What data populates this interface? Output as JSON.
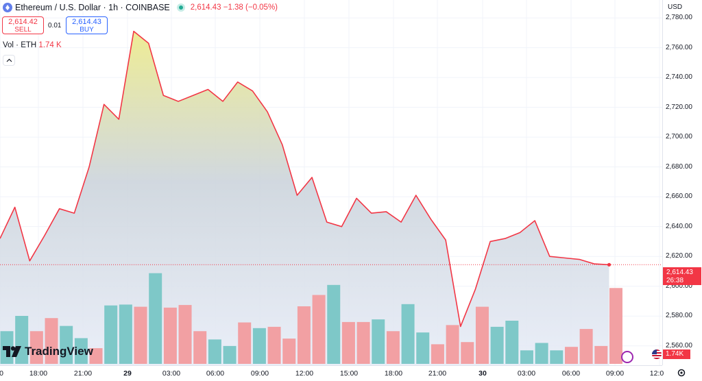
{
  "header": {
    "symbol": "Ethereum / U.S. Dollar · 1h · COINBASE",
    "quote": "2,614.43  −1.38  (−0.05%)"
  },
  "trade": {
    "sell_price": "2,614.42",
    "sell_label": "SELL",
    "spread": "0.01",
    "buy_price": "2,614.43",
    "buy_label": "BUY"
  },
  "volume_legend": {
    "label": "Vol · ETH",
    "value": "1.74 K"
  },
  "price_axis": {
    "currency": "USD",
    "ticks": [
      "2,780.00",
      "2,760.00",
      "2,740.00",
      "2,720.00",
      "2,700.00",
      "2,680.00",
      "2,660.00",
      "2,640.00",
      "2,620.00",
      "2,600.00",
      "2,580.00",
      "2,560.00"
    ]
  },
  "last_price": {
    "price": "2,614.43",
    "countdown": "26:38"
  },
  "last_volume": "1.74K",
  "time_axis": [
    "0",
    "18:00",
    "21:00",
    "29",
    "03:00",
    "06:00",
    "09:00",
    "12:00",
    "15:00",
    "18:00",
    "21:00",
    "30",
    "03:00",
    "06:00",
    "09:00",
    "12:0"
  ],
  "brand": "TradingView",
  "colors": {
    "line": "#f23645",
    "vol_up": "#7ec8c8",
    "vol_down": "#f2a0a3",
    "fill_top": "#ecea8a",
    "fill_bottom": "#e8edf8"
  },
  "chart_data": {
    "type": "area",
    "ylim": [
      2547,
      2792
    ],
    "series": [
      {
        "values": [
          2632,
          2653,
          2617,
          2634,
          2652,
          2649,
          2680,
          2722,
          2712,
          2771,
          2763,
          2728,
          2724,
          2728,
          2732,
          2724,
          2737,
          2731,
          2717,
          2695,
          2661,
          2673,
          2643,
          2640,
          2659,
          2649,
          2650,
          2643,
          2661,
          2645,
          2631,
          2573,
          2598,
          2630,
          2632,
          2636,
          2644,
          2620,
          2619,
          2618,
          2615,
          2614.43
        ]
      }
    ],
    "volume": {
      "values": [
        0.75,
        1.1,
        0.75,
        1.05,
        0.87,
        0.59,
        0.36,
        1.34,
        1.36,
        1.31,
        2.08,
        1.29,
        1.35,
        0.75,
        0.56,
        0.41,
        0.95,
        0.82,
        0.85,
        0.58,
        1.32,
        1.58,
        1.81,
        0.96,
        0.96,
        1.02,
        0.75,
        1.37,
        0.72,
        0.45,
        0.89,
        0.5,
        1.31,
        0.85,
        0.99,
        0.31,
        0.48,
        0.31,
        0.39,
        0.8,
        0.41,
        1.74
      ],
      "direction": [
        "up",
        "up",
        "down",
        "down",
        "up",
        "up",
        "down",
        "up",
        "up",
        "down",
        "up",
        "down",
        "down",
        "down",
        "up",
        "up",
        "down",
        "up",
        "down",
        "down",
        "down",
        "down",
        "up",
        "down",
        "down",
        "up",
        "down",
        "up",
        "up",
        "down",
        "down",
        "down",
        "down",
        "up",
        "up",
        "up",
        "up",
        "up",
        "down",
        "down",
        "down",
        "down"
      ]
    }
  }
}
